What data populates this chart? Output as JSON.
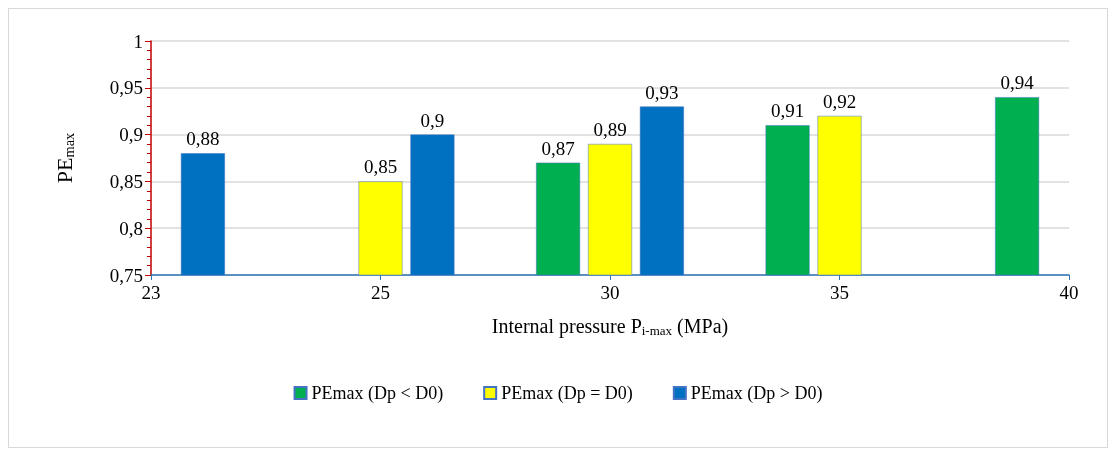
{
  "chart_data": {
    "type": "bar",
    "xlabel": "Internal pressure P$_{i-max}$ (MPa)",
    "ylabel": "PE$_{max}$",
    "categories": [
      "23",
      "25",
      "30",
      "35",
      "40"
    ],
    "series": [
      {
        "name": "PEmax (Dp < D0)",
        "color": "#00b050",
        "values": [
          null,
          null,
          0.87,
          0.91,
          0.94
        ],
        "value_labels": [
          null,
          null,
          "0,87",
          "0,91",
          "0,94"
        ]
      },
      {
        "name": "PEmax (Dp = D0)",
        "color": "#ffff00",
        "values": [
          null,
          0.85,
          0.89,
          0.92,
          null
        ],
        "value_labels": [
          null,
          "0,85",
          "0,89",
          "0,92",
          null
        ]
      },
      {
        "name": "PEmax (Dp > D0)",
        "color": "#0070c0",
        "values": [
          0.88,
          0.9,
          0.93,
          null,
          null
        ],
        "value_labels": [
          "0,88",
          "0,9",
          "0,93",
          null,
          null
        ]
      }
    ],
    "ylim": [
      0.75,
      1
    ],
    "yticks": [
      {
        "value": 0.75,
        "label": "0,75"
      },
      {
        "value": 0.8,
        "label": "0,8"
      },
      {
        "value": 0.85,
        "label": "0,85"
      },
      {
        "value": 0.9,
        "label": "0,9"
      },
      {
        "value": 0.95,
        "label": "0,95"
      },
      1
    ],
    "grid": "y",
    "legend": "bottom"
  }
}
